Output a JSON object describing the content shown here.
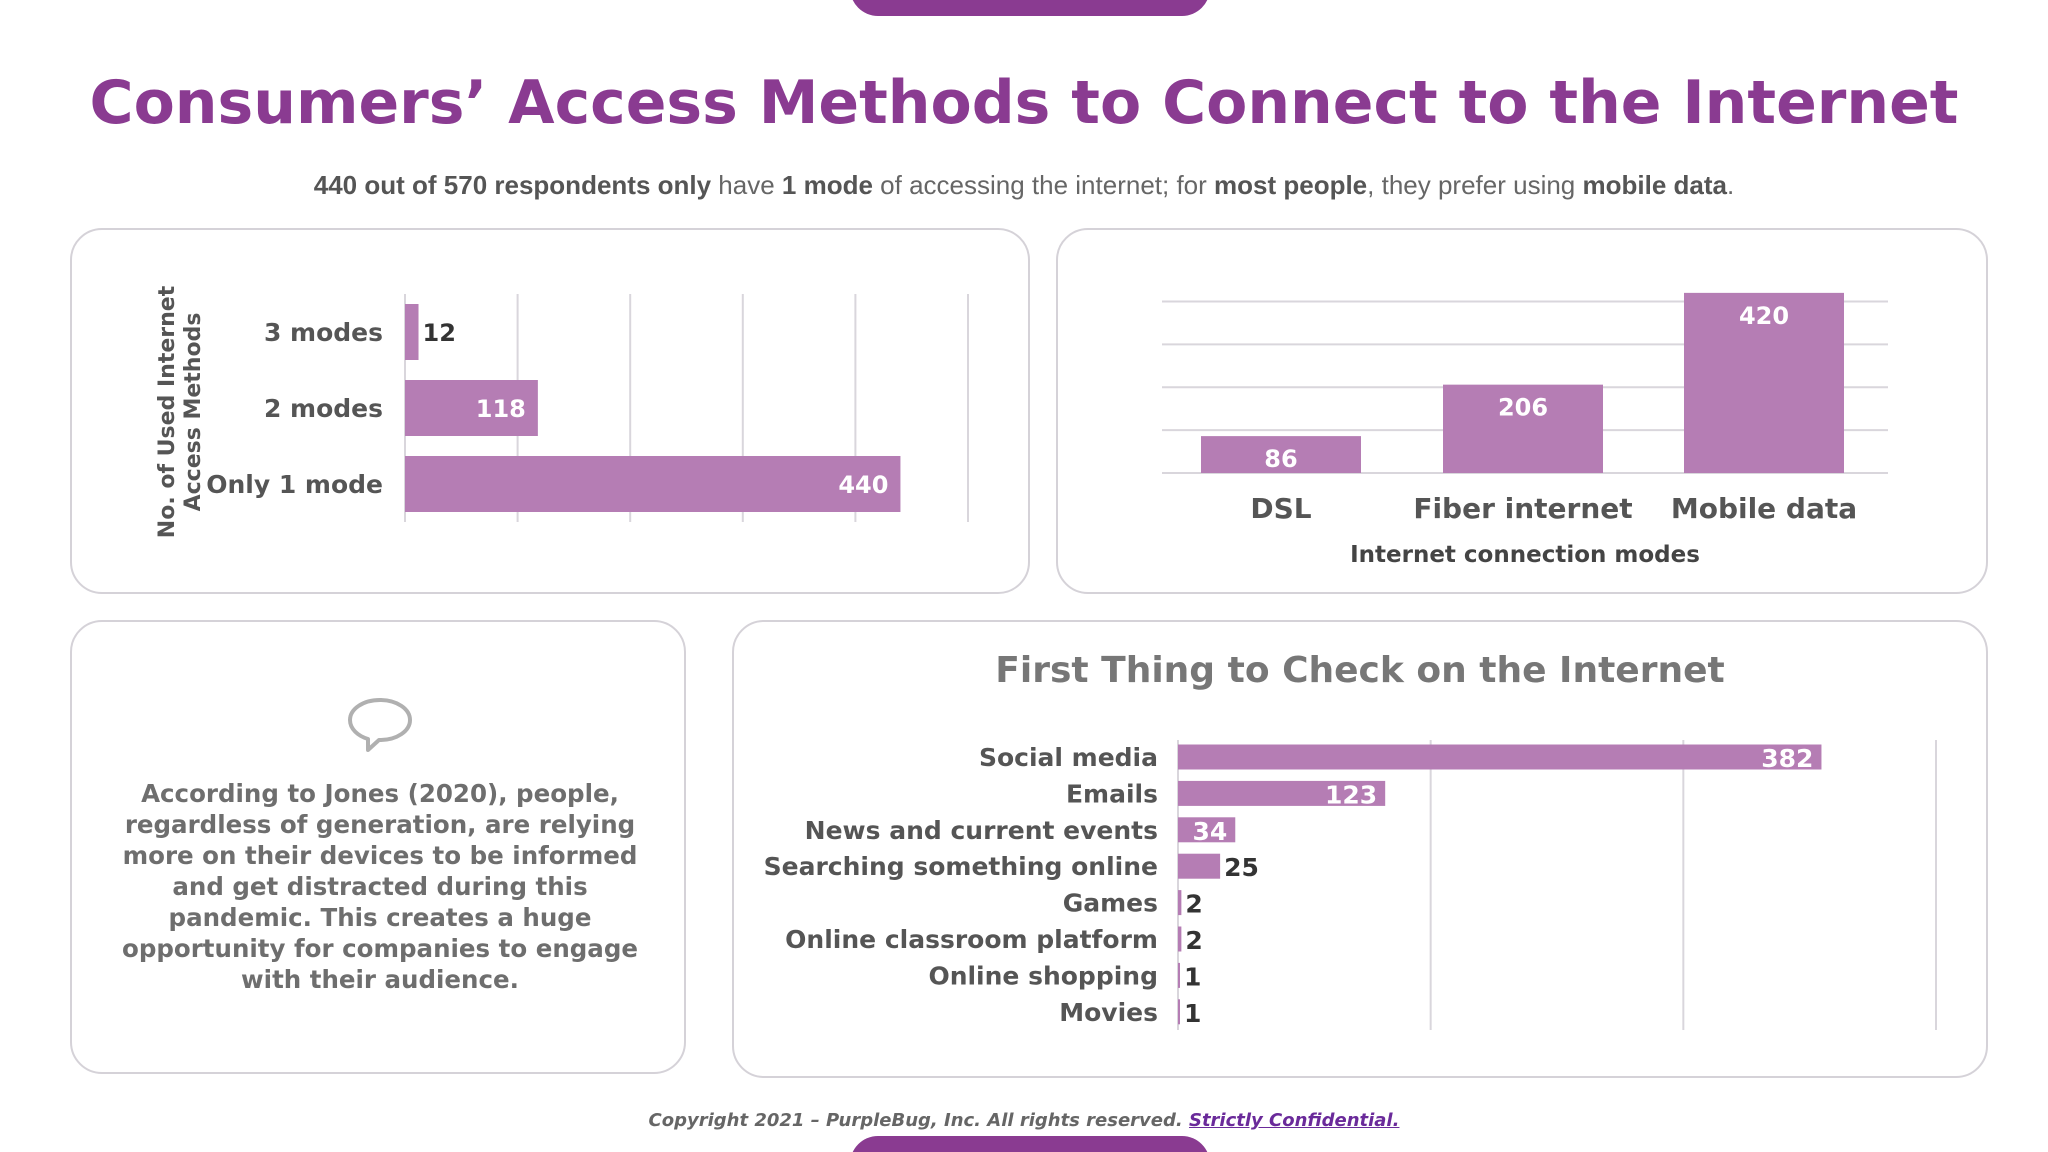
{
  "header": {
    "title": "Consumers’ Access Methods to Connect to the Internet",
    "subtitle_parts": [
      {
        "text": "440 out of 570 respondents only",
        "bold": true
      },
      {
        "text": " have ",
        "bold": false
      },
      {
        "text": "1 mode",
        "bold": true
      },
      {
        "text": " of accessing the internet; for ",
        "bold": false
      },
      {
        "text": "most people",
        "bold": true
      },
      {
        "text": ", they prefer using ",
        "bold": false
      },
      {
        "text": "mobile data",
        "bold": true
      },
      {
        "text": ".",
        "bold": false
      }
    ]
  },
  "colors": {
    "accent": "#8a3b91",
    "bar": "#b57db4",
    "grid": "#d9d6dc",
    "label": "#555555"
  },
  "chart_data": [
    {
      "type": "bar",
      "orientation": "horizontal",
      "ylabel": "No. of Used Internet Access Methods",
      "categories": [
        "3 modes",
        "2 modes",
        "Only 1 mode"
      ],
      "values": [
        12,
        118,
        440
      ],
      "xlim": [
        0,
        500
      ],
      "grid": true
    },
    {
      "type": "bar",
      "orientation": "vertical",
      "xlabel": "Internet connection modes",
      "categories": [
        "DSL",
        "Fiber internet",
        "Mobile data"
      ],
      "values": [
        86,
        206,
        420
      ],
      "ylim": [
        0,
        450
      ],
      "grid": true
    },
    {
      "type": "bar",
      "orientation": "horizontal",
      "title": "First Thing to Check on the Internet",
      "categories": [
        "Social media",
        "Emails",
        "News and current events",
        "Searching something online",
        "Games",
        "Online classroom platform",
        "Online shopping",
        "Movies"
      ],
      "values": [
        382,
        123,
        34,
        25,
        2,
        2,
        1,
        1
      ],
      "xlim": [
        0,
        450
      ],
      "grid": true
    }
  ],
  "note": {
    "icon": "speech-bubble-icon",
    "text": "According to Jones (2020), people, regardless of generation, are relying more on their devices to be informed and get distracted during this pandemic. This creates a huge opportunity for companies to engage with their audience."
  },
  "footer": {
    "copyright": "Copyright 2021 – PurpleBug, Inc. All rights reserved. ",
    "link": "Strictly Confidential."
  }
}
